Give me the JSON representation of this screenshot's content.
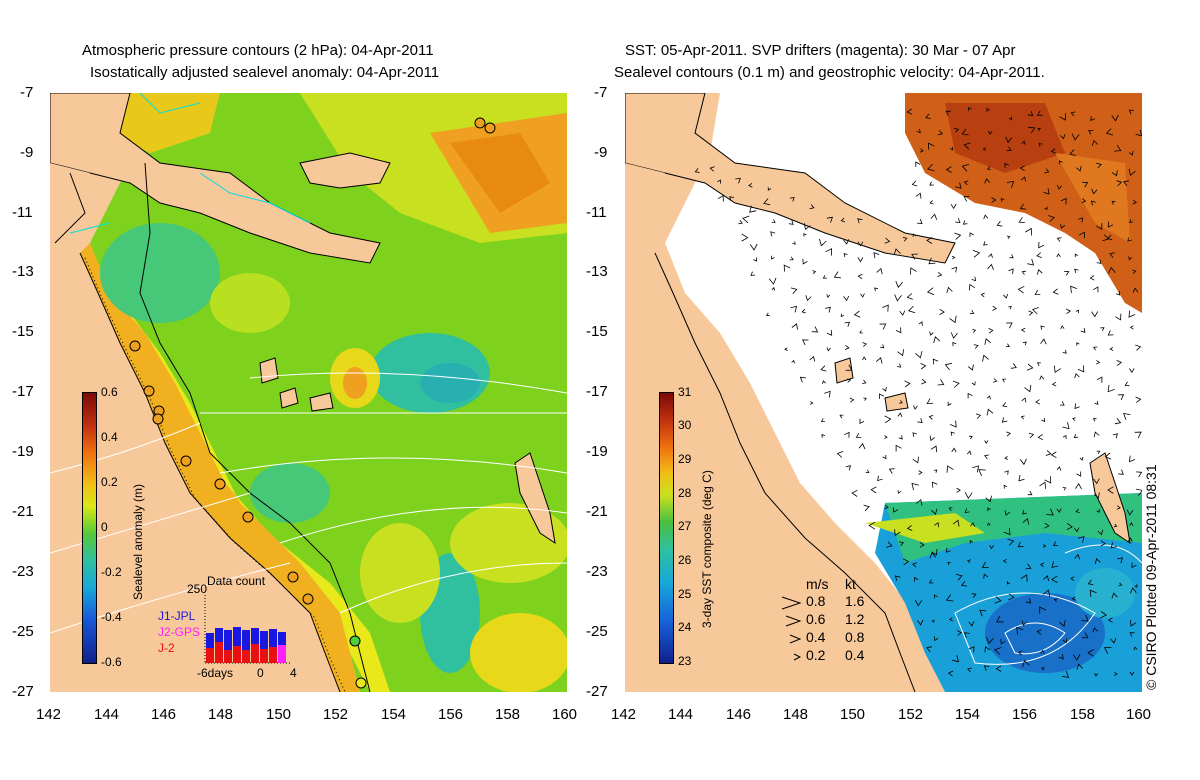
{
  "left_panel": {
    "title_line1": "Atmospheric pressure contours (2 hPa): 04-Apr-2011",
    "title_line2": "Isostatically adjusted sealevel anomaly: 04-Apr-2011",
    "colorbar": {
      "title": "Sealevel anomaly (m)",
      "ticks": [
        "0.6",
        "0.4",
        "0.2",
        "0",
        "-0.2",
        "-0.4",
        "-0.6"
      ]
    },
    "inset": {
      "max_label": "250",
      "title": "Data count",
      "missions": [
        {
          "name": "J1-JPL",
          "color": "#1818e0"
        },
        {
          "name": "J2-GPS",
          "color": "#ff20ff"
        },
        {
          "name": "J-2",
          "color": "#e81010"
        }
      ],
      "axis_labels": [
        "-6days",
        "0",
        "4"
      ]
    }
  },
  "right_panel": {
    "title_line1": "SST: 05-Apr-2011. SVP drifters (magenta): 30 Mar - 07 Apr",
    "title_line2": "Sealevel contours (0.1 m) and geostrophic velocity: 04-Apr-2011.",
    "colorbar": {
      "title": "3-day SST composite (deg C)",
      "ticks": [
        "31",
        "30",
        "29",
        "28",
        "27",
        "26",
        "25",
        "24",
        "23"
      ]
    },
    "velocity_legend": {
      "header_ms": "m/s",
      "header_kt": "kt",
      "rows": [
        {
          "ms": "0.8",
          "kt": "1.6"
        },
        {
          "ms": "0.6",
          "kt": "1.2"
        },
        {
          "ms": "0.4",
          "kt": "0.8"
        },
        {
          "ms": "0.2",
          "kt": "0.4"
        }
      ]
    }
  },
  "axes": {
    "lat_labels": [
      "-7",
      "-9",
      "-11",
      "-13",
      "-15",
      "-17",
      "-19",
      "-21",
      "-23",
      "-25",
      "-27"
    ],
    "lon_labels": [
      "142",
      "144",
      "146",
      "148",
      "150",
      "152",
      "154",
      "156",
      "158",
      "160"
    ]
  },
  "copyright": "© CSIRO Plotted 09-Apr-2011 08:31",
  "colors": {
    "land": "#f7c89a",
    "anomaly_green": "#7ed21e",
    "anomaly_yellow": "#e8e81a",
    "anomaly_orange": "#f0a020",
    "anomaly_teal": "#2ec8a0",
    "sst_orange": "#d06018",
    "sst_blue": "#1aa0d8"
  }
}
